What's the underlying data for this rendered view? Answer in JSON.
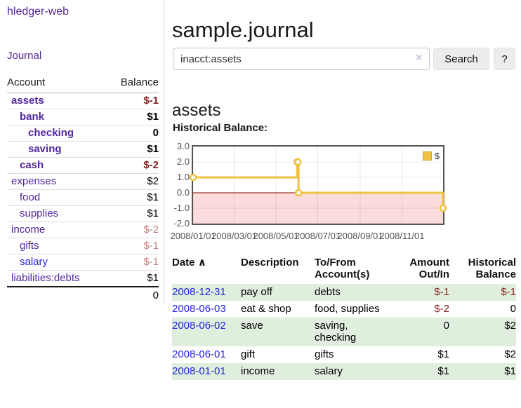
{
  "brand": "hledger-web",
  "nav": {
    "journal": "Journal"
  },
  "sidebar": {
    "header": {
      "account": "Account",
      "balance": "Balance"
    },
    "accounts": [
      {
        "name": "assets",
        "balance": "$-1",
        "depth": 0,
        "bold": true,
        "tone": "negstrong",
        "link": "purple"
      },
      {
        "name": "bank",
        "balance": "$1",
        "depth": 1,
        "bold": true,
        "tone": "pos",
        "link": "purple"
      },
      {
        "name": "checking",
        "balance": "0",
        "depth": 2,
        "bold": true,
        "tone": "pos",
        "link": "purple"
      },
      {
        "name": "saving",
        "balance": "$1",
        "depth": 2,
        "bold": true,
        "tone": "pos",
        "link": "purple"
      },
      {
        "name": "cash",
        "balance": "$-2",
        "depth": 1,
        "bold": true,
        "tone": "negstrong",
        "link": "purple"
      },
      {
        "name": "expenses",
        "balance": "$2",
        "depth": 0,
        "bold": false,
        "tone": "pos",
        "link": "purple"
      },
      {
        "name": "food",
        "balance": "$1",
        "depth": 1,
        "bold": false,
        "tone": "pos",
        "link": "purple"
      },
      {
        "name": "supplies",
        "balance": "$1",
        "depth": 1,
        "bold": false,
        "tone": "pos",
        "link": "purple"
      },
      {
        "name": "income",
        "balance": "$-2",
        "depth": 0,
        "bold": false,
        "tone": "negweak",
        "link": "purple"
      },
      {
        "name": "gifts",
        "balance": "$-1",
        "depth": 1,
        "bold": false,
        "tone": "negweak",
        "link": "purple"
      },
      {
        "name": "salary",
        "balance": "$-1",
        "depth": 1,
        "bold": false,
        "tone": "negweak",
        "link": "blue"
      },
      {
        "name": "liabilities:debts",
        "balance": "$1",
        "depth": 0,
        "bold": false,
        "tone": "pos",
        "link": "purple"
      }
    ],
    "total": "0"
  },
  "main": {
    "title": "sample.journal",
    "account_title": "assets",
    "chart_label": "Historical Balance:"
  },
  "search": {
    "value": "inacct:assets",
    "clear_icon": "×",
    "search_button": "Search",
    "help_button": "?"
  },
  "chart_data": {
    "type": "line",
    "title": "Historical Balance",
    "series": [
      {
        "name": "$",
        "color": "#edc240",
        "steps": true,
        "points": [
          [
            "2008-01-01",
            1
          ],
          [
            "2008-06-01",
            2
          ],
          [
            "2008-06-02",
            2
          ],
          [
            "2008-06-03",
            0
          ],
          [
            "2008-12-31",
            -1
          ]
        ]
      }
    ],
    "x_range": [
      "2008-01-01",
      "2008-12-31"
    ],
    "y_range": [
      -2,
      3
    ],
    "x_ticks": [
      "2008/01/01",
      "2008/03/01",
      "2008/05/01",
      "2008/07/01",
      "2008/09/01",
      "2008/11/01"
    ],
    "y_ticks": [
      "3.0",
      "2.0",
      "1.0",
      "0.0",
      "-1.0",
      "-2.0"
    ],
    "grid": true,
    "legend": {
      "label": "$",
      "position": "top-right"
    },
    "negative_region_color": "#fbdcdc",
    "zero_line_color": "#8b0000"
  },
  "register": {
    "headers": {
      "date": "Date",
      "sort_indicator": "∧",
      "description": "Description",
      "accounts": "To/From Account(s)",
      "amount": "Amount Out/In",
      "balance": "Historical Balance"
    },
    "rows": [
      {
        "date": "2008-12-31",
        "description": "pay off",
        "accounts": "debts",
        "amount": "$-1",
        "amount_tone": "neg",
        "balance": "$-1",
        "balance_tone": "neg",
        "shaded": true
      },
      {
        "date": "2008-06-03",
        "description": "eat & shop",
        "accounts": "food, supplies",
        "amount": "$-2",
        "amount_tone": "neg",
        "balance": "0",
        "balance_tone": "pos",
        "shaded": false
      },
      {
        "date": "2008-06-02",
        "description": "save",
        "accounts": "saving,\nchecking",
        "amount": "0",
        "amount_tone": "pos",
        "balance": "$2",
        "balance_tone": "pos",
        "shaded": true
      },
      {
        "date": "2008-06-01",
        "description": "gift",
        "accounts": "gifts",
        "amount": "$1",
        "amount_tone": "pos",
        "balance": "$2",
        "balance_tone": "pos",
        "shaded": false
      },
      {
        "date": "2008-01-01",
        "description": "income",
        "accounts": "salary",
        "amount": "$1",
        "amount_tone": "pos",
        "balance": "$1",
        "balance_tone": "pos",
        "shaded": true
      }
    ]
  }
}
